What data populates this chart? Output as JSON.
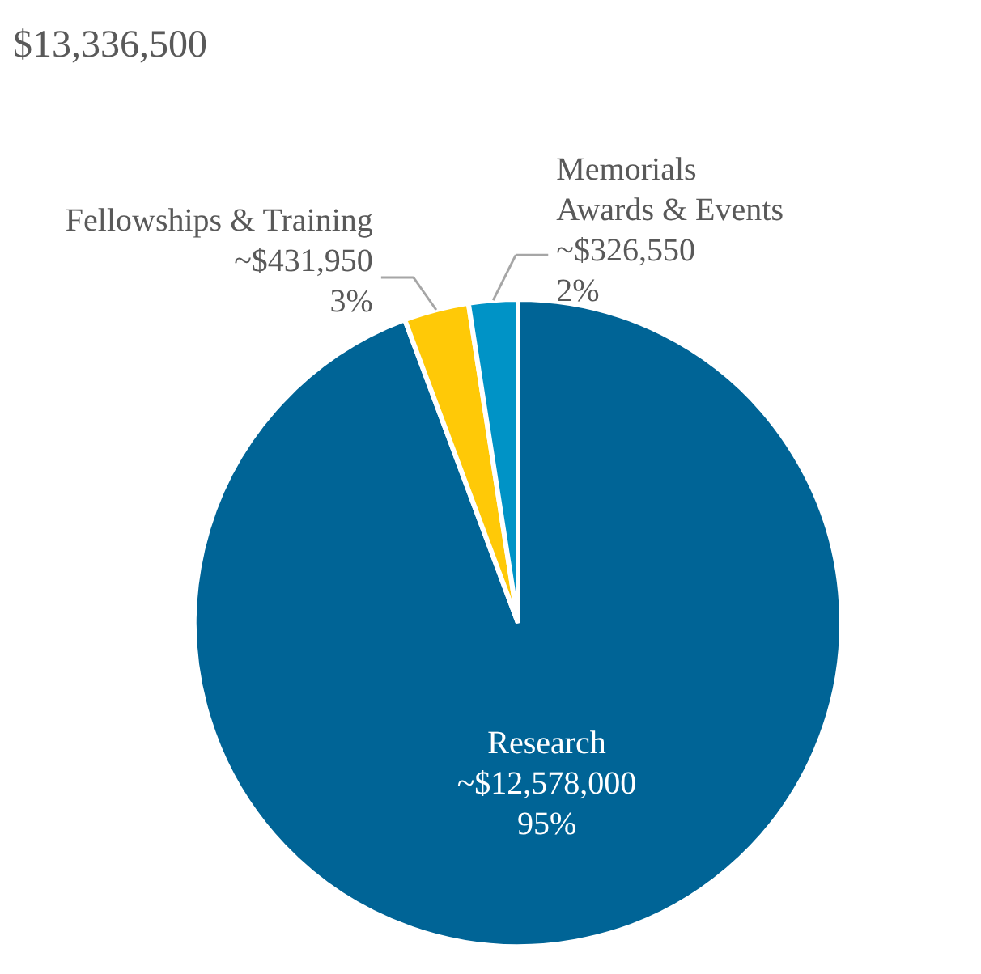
{
  "chart_data": {
    "type": "pie",
    "title": "$13,336,500",
    "categories": [
      "Research",
      "Fellowships & Training",
      "Memorials\nAwards & Events"
    ],
    "values": [
      12578000,
      431950,
      326550
    ],
    "colors": [
      "#006496",
      "#ffc907",
      "#0093c6"
    ],
    "value_labels": [
      "~$12,578,000\n95%",
      "~$431,950\n3%",
      "~$326,550\n2%"
    ],
    "legend": false
  }
}
